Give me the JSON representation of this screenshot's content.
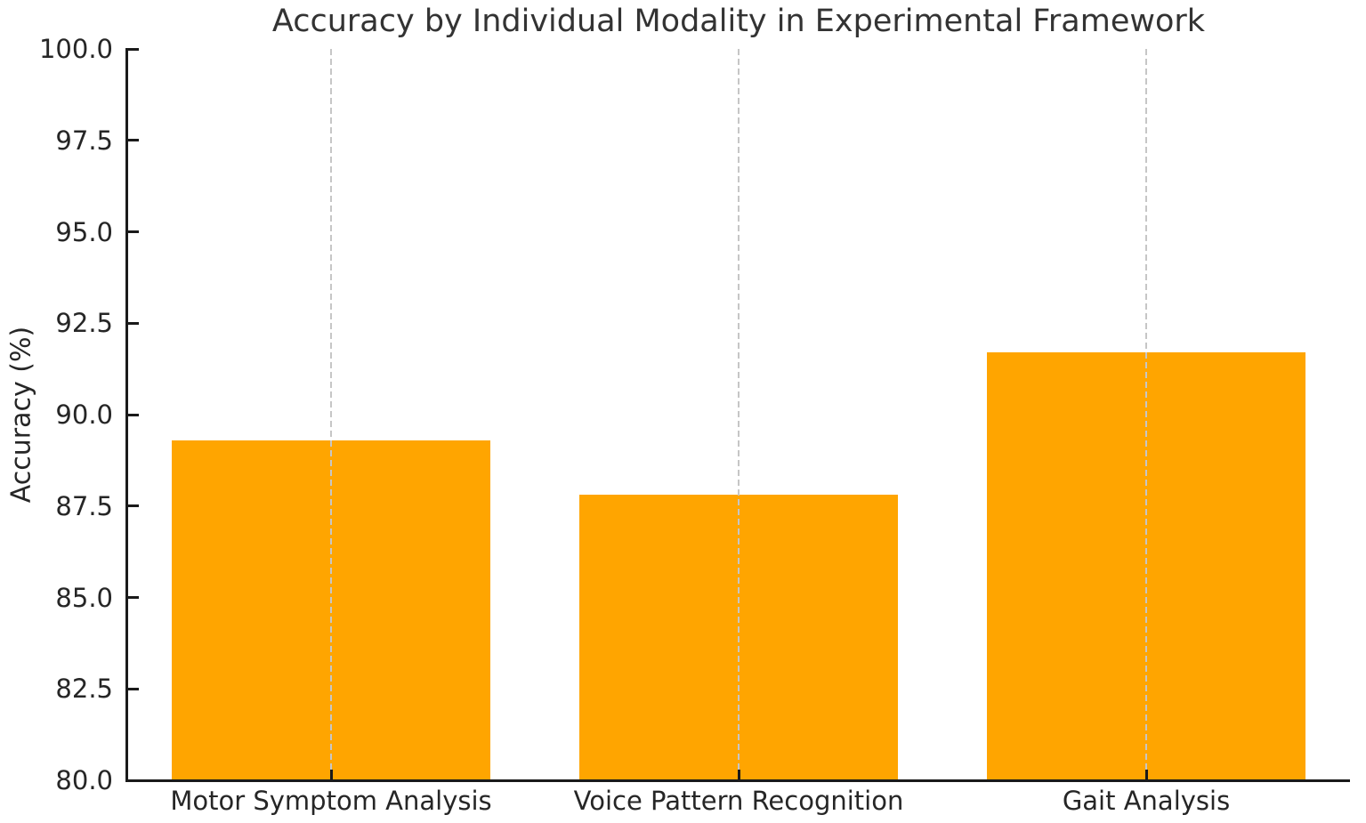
{
  "chart_data": {
    "type": "bar",
    "title": "Accuracy by Individual Modality in Experimental Framework",
    "categories": [
      "Motor Symptom Analysis",
      "Voice Pattern Recognition",
      "Gait Analysis"
    ],
    "values": [
      89.3,
      87.8,
      91.7
    ],
    "xlabel": "",
    "ylabel": "Accuracy (%)",
    "ylim": [
      80.0,
      100.0
    ],
    "ytick_labels": [
      "80.0",
      "82.5",
      "85.0",
      "87.5",
      "90.0",
      "92.5",
      "95.0",
      "97.5",
      "100.0"
    ],
    "bar_color": "#FFA500",
    "grid": "vertical dashed gridline at each bar center, drawn over bars",
    "grid_color": "#c6c6c6",
    "legend_position": "none",
    "bar_width_fraction": 0.78,
    "axis_color": "#1a1a1a",
    "text_color": "#262626",
    "tick_direction": "in"
  }
}
